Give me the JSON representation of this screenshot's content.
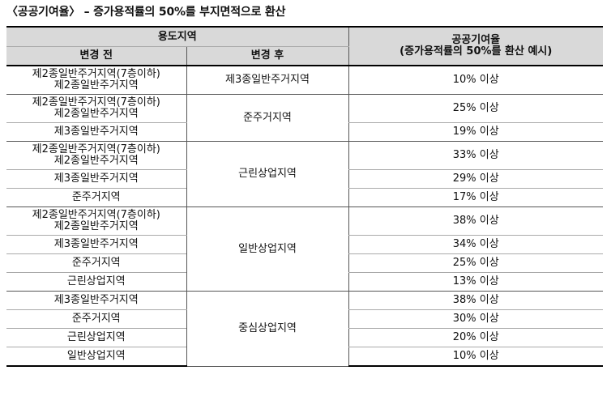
{
  "title": "〈공공기여율〉 – 증가용적률의 50%를 부지면적으로 환산",
  "table": {
    "header_zone": "용도지역",
    "header_before": "변경 전",
    "header_after": "변경 후",
    "header_rate_line1": "공공기여율",
    "header_rate_line2": "(증가용적률의 50%를 환산 예시)",
    "groups": [
      {
        "after": "제3종일반주거지역",
        "rows": [
          {
            "before": [
              "제2종일반주거지역(7층이하)",
              "제2종일반주거지역"
            ],
            "rate": "10% 이상"
          }
        ]
      },
      {
        "after": "준주거지역",
        "rows": [
          {
            "before": [
              "제2종일반주거지역(7층이하)",
              "제2종일반주거지역"
            ],
            "rate": "25% 이상"
          },
          {
            "before": [
              "제3종일반주거지역"
            ],
            "rate": "19% 이상"
          }
        ]
      },
      {
        "after": "근린상업지역",
        "rows": [
          {
            "before": [
              "제2종일반주거지역(7층이하)",
              "제2종일반주거지역"
            ],
            "rate": "33% 이상"
          },
          {
            "before": [
              "제3종일반주거지역"
            ],
            "rate": "29% 이상"
          },
          {
            "before": [
              "준주거지역"
            ],
            "rate": "17% 이상"
          }
        ]
      },
      {
        "after": "일반상업지역",
        "rows": [
          {
            "before": [
              "제2종일반주거지역(7층이하)",
              "제2종일반주거지역"
            ],
            "rate": "38% 이상"
          },
          {
            "before": [
              "제3종일반주거지역"
            ],
            "rate": "34% 이상"
          },
          {
            "before": [
              "준주거지역"
            ],
            "rate": "25% 이상"
          },
          {
            "before": [
              "근린상업지역"
            ],
            "rate": "13% 이상"
          }
        ]
      },
      {
        "after": "중심상업지역",
        "rows": [
          {
            "before": [
              "제3종일반주거지역"
            ],
            "rate": "38% 이상"
          },
          {
            "before": [
              "준주거지역"
            ],
            "rate": "30% 이상"
          },
          {
            "before": [
              "근린상업지역"
            ],
            "rate": "20% 이상"
          },
          {
            "before": [
              "일반상업지역"
            ],
            "rate": "10% 이상"
          }
        ]
      }
    ]
  }
}
